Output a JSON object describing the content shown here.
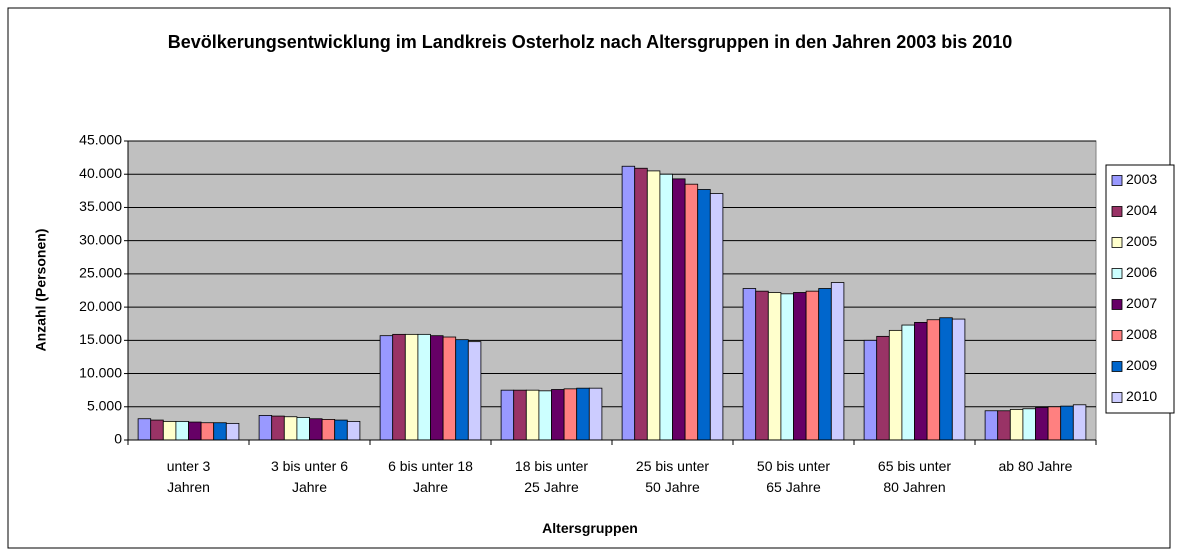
{
  "chart_data": {
    "type": "bar",
    "title": "Bevölkerungsentwicklung im Landkreis Osterholz nach Altersgruppen in den Jahren 2003 bis 2010",
    "x_label": "Altersgruppen",
    "y_label": "Anzahl (Personen)",
    "categories": [
      "unter 3 Jahren",
      "3 bis unter 6 Jahre",
      "6 bis unter 18 Jahre",
      "18 bis unter 25 Jahre",
      "25 bis unter 50 Jahre",
      "50 bis unter 65 Jahre",
      "65 bis unter 80 Jahren",
      "ab 80 Jahre"
    ],
    "series": [
      {
        "name": "2003",
        "color": "#9999ff",
        "values": [
          3200,
          3700,
          15700,
          7500,
          41200,
          22800,
          15000,
          4400
        ]
      },
      {
        "name": "2004",
        "color": "#993366",
        "values": [
          3000,
          3600,
          15900,
          7500,
          40900,
          22400,
          15600,
          4400
        ]
      },
      {
        "name": "2005",
        "color": "#ffffcc",
        "values": [
          2800,
          3500,
          15900,
          7500,
          40500,
          22200,
          16500,
          4600
        ]
      },
      {
        "name": "2006",
        "color": "#ccffff",
        "values": [
          2800,
          3400,
          15900,
          7400,
          40000,
          22000,
          17300,
          4700
        ]
      },
      {
        "name": "2007",
        "color": "#660066",
        "values": [
          2700,
          3200,
          15700,
          7600,
          39300,
          22200,
          17700,
          4900
        ]
      },
      {
        "name": "2008",
        "color": "#ff8080",
        "values": [
          2600,
          3100,
          15500,
          7700,
          38500,
          22400,
          18100,
          5000
        ]
      },
      {
        "name": "2009",
        "color": "#0066cc",
        "values": [
          2600,
          3000,
          15100,
          7800,
          37700,
          22800,
          18400,
          5100
        ]
      },
      {
        "name": "2010",
        "color": "#ccccff",
        "values": [
          2500,
          2800,
          14800,
          7800,
          37100,
          23700,
          18200,
          5300
        ]
      }
    ],
    "ylim": [
      0,
      45000
    ],
    "yticks": [
      0,
      {
        "value": 5000,
        "label": "5.000"
      },
      {
        "value": 10000,
        "label": "10.000"
      },
      {
        "value": 15000,
        "label": "15.000"
      },
      {
        "value": 20000,
        "label": "20.000"
      },
      {
        "value": 25000,
        "label": "25.000"
      },
      {
        "value": 30000,
        "label": "30.000"
      },
      {
        "value": 35000,
        "label": "35.000"
      },
      {
        "value": 40000,
        "label": "40.000"
      },
      {
        "value": 45000,
        "label": "45.000"
      }
    ],
    "grid": true,
    "plot_background": "#c0c0c0",
    "legend": "right"
  }
}
